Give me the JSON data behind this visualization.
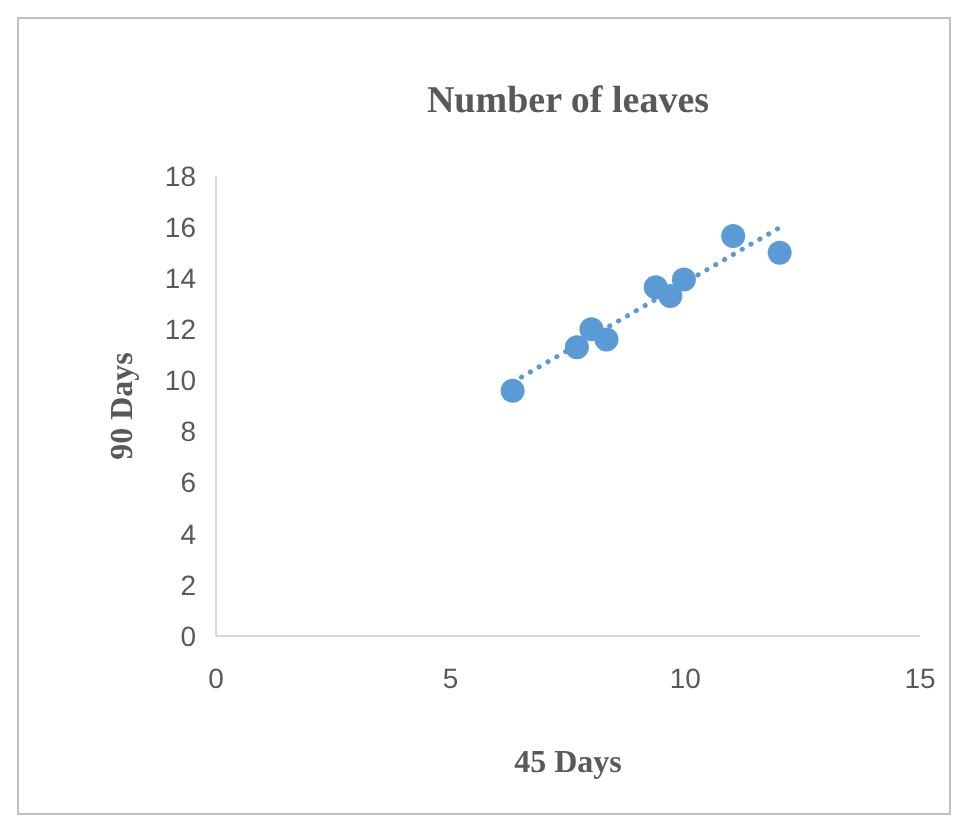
{
  "chart_data": {
    "type": "scatter",
    "title": "Number of leaves",
    "xlabel": "45 Days",
    "ylabel": "90 Days",
    "xlim": [
      0,
      15
    ],
    "xticks": [
      0,
      5,
      10,
      15
    ],
    "ylim": [
      0,
      18
    ],
    "yticks": [
      0,
      2,
      4,
      6,
      8,
      10,
      12,
      14,
      16,
      18
    ],
    "grid": false,
    "marker": "circle",
    "series": [
      {
        "color": "#5b9bd5",
        "x": [
          6.32,
          7.69,
          8.0,
          8.32,
          9.37,
          9.68,
          9.97,
          11.02,
          12.01
        ],
        "values": [
          9.6,
          11.3,
          12.0,
          11.6,
          13.65,
          13.3,
          13.95,
          15.65,
          15.0
        ]
      },
      {
        "type": "line",
        "color": "#5b9bd5",
        "line_style": "dotted",
        "marker": "none",
        "x": [
          6.32,
          12.01
        ],
        "values": [
          9.93,
          15.98
        ]
      }
    ]
  }
}
